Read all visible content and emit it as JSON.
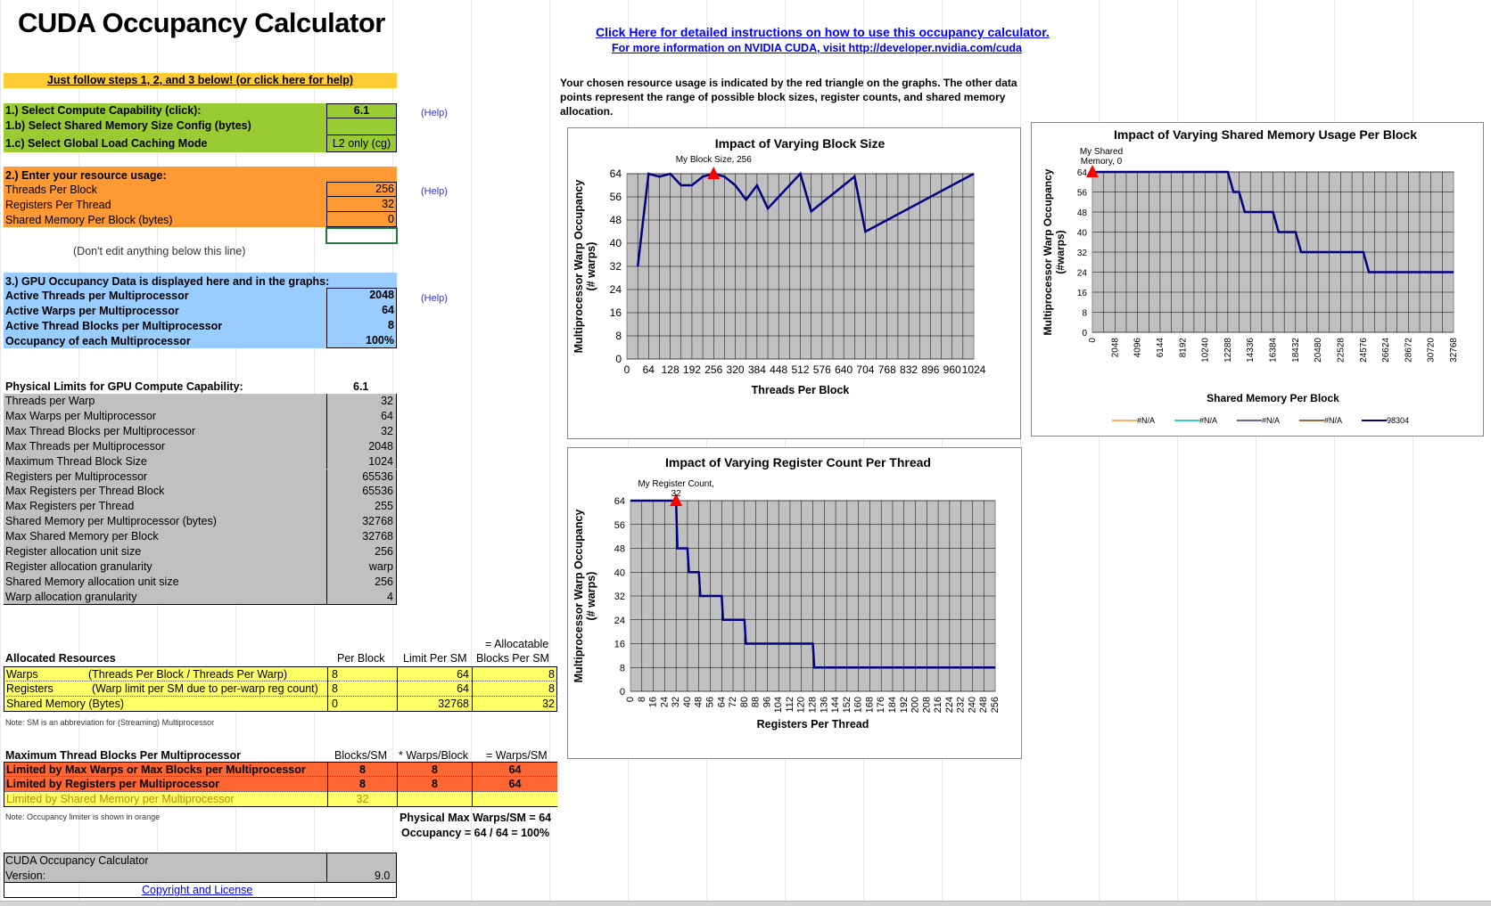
{
  "title": "CUDA Occupancy Calculator",
  "instructions_link": "Click Here for detailed instructions on how to use this occupancy calculator.",
  "more_info_link": "For more information on NVIDIA CUDA, visit http://developer.nvidia.com/cuda",
  "chosen_note": "Your chosen resource usage is indicated by the red triangle on the graphs.  The other data points represent the range of possible block sizes, register counts, and shared memory allocation.",
  "steps_banner": "Just follow steps 1, 2, and 3 below! (or click here for help)",
  "step1": {
    "rows": [
      {
        "label": "1.) Select Compute Capability (click):",
        "value": "6.1"
      },
      {
        "label": "1.b) Select Shared Memory Size Config (bytes)",
        "value": ""
      },
      {
        "label": "1.c) Select Global Load Caching Mode",
        "value": "L2 only (cg)"
      }
    ],
    "help": "(Help)"
  },
  "step2": {
    "heading": "2.) Enter your resource usage:",
    "rows": [
      {
        "label": "Threads Per Block",
        "value": "256"
      },
      {
        "label": "Registers Per Thread",
        "value": "32"
      },
      {
        "label": "Shared Memory Per Block (bytes)",
        "value": "0"
      }
    ],
    "help": "(Help)"
  },
  "dont_edit": "(Don't edit anything below this line)",
  "step3": {
    "heading": "3.) GPU Occupancy Data is displayed here and in the graphs:",
    "rows": [
      {
        "label": "Active Threads per Multiprocessor",
        "value": "2048"
      },
      {
        "label": "Active Warps per Multiprocessor",
        "value": "64"
      },
      {
        "label": "Active Thread Blocks per Multiprocessor",
        "value": "8"
      },
      {
        "label": "Occupancy of each Multiprocessor",
        "value": "100%"
      }
    ],
    "help": "(Help)"
  },
  "limits": {
    "heading": "Physical Limits for GPU Compute Capability:",
    "heading_value": "6.1",
    "rows": [
      {
        "label": "Threads per Warp",
        "value": "32"
      },
      {
        "label": "Max Warps per Multiprocessor",
        "value": "64"
      },
      {
        "label": "Max Thread Blocks per Multiprocessor",
        "value": "32"
      },
      {
        "label": "Max Threads per Multiprocessor",
        "value": "2048"
      },
      {
        "label": "Maximum Thread Block Size",
        "value": "1024"
      },
      {
        "label": "Registers per Multiprocessor",
        "value": "65536"
      },
      {
        "label": "Max Registers per Thread Block",
        "value": "65536"
      },
      {
        "label": "Max Registers per Thread",
        "value": "255"
      },
      {
        "label": "Shared Memory per Multiprocessor (bytes)",
        "value": "32768"
      },
      {
        "label": "Max Shared Memory per Block",
        "value": "32768"
      },
      {
        "label": "Register allocation unit size",
        "value": "256"
      },
      {
        "label": "Register allocation granularity",
        "value": "warp"
      },
      {
        "label": "Shared Memory allocation unit size",
        "value": "256"
      },
      {
        "label": "Warp allocation granularity",
        "value": "4"
      }
    ]
  },
  "allocated": {
    "allocatable_top": "= Allocatable",
    "heading": "Allocated Resources",
    "col_per_block": "Per Block",
    "col_limit": "Limit Per SM",
    "col_blocks": "Blocks Per SM",
    "rows": [
      {
        "label": "Warps",
        "desc": "(Threads Per Block / Threads Per Warp)",
        "per_block": "8",
        "limit": "64",
        "blocks": "8"
      },
      {
        "label": "Registers",
        "desc": "(Warp limit per SM due to per-warp reg count)",
        "per_block": "8",
        "limit": "64",
        "blocks": "8"
      },
      {
        "label": "Shared Memory (Bytes)",
        "desc": "",
        "per_block": "0",
        "limit": "32768",
        "blocks": "32"
      }
    ],
    "note": "Note: SM is an abbreviation for (Streaming) Multiprocessor"
  },
  "maxblocks": {
    "heading": "Maximum Thread Blocks Per Multiprocessor",
    "col_blocks": "Blocks/SM",
    "col_warps": "* Warps/Block",
    "col_total": "= Warps/SM",
    "rows": [
      {
        "label": "Limited by Max Warps or Max Blocks per Multiprocessor",
        "blocks": "8",
        "warps": "8",
        "total": "64",
        "state": "limiter"
      },
      {
        "label": "Limited by Registers per Multiprocessor",
        "blocks": "8",
        "warps": "8",
        "total": "64",
        "state": "limiter"
      },
      {
        "label": "Limited by Shared Memory per Multiprocessor",
        "blocks": "32",
        "warps": "",
        "total": "",
        "state": "normal"
      }
    ],
    "note": "Note: Occupancy limiter is shown in orange",
    "phys_max": "Physical Max Warps/SM = 64",
    "occupancy": "Occupancy = 64 / 64 = 100%"
  },
  "footer": {
    "name": "CUDA Occupancy Calculator",
    "version_label": "Version:",
    "version": "9.0",
    "copyright": "Copyright and License"
  },
  "colors": {
    "banner": "#ffcc33",
    "green": "#99cc33",
    "orange": "#ff9933",
    "blue": "#99ccff",
    "gray": "#c0c0c0",
    "yellow": "#ffff66",
    "limiter": "#ff6633",
    "line": "#000080",
    "marker": "#ff0000"
  },
  "charts": {
    "ylabel_top": "Multiprocessor Warp Occupancy",
    "ylabel_bottom": "(# warps)",
    "ylabel_smem_top": "Multiprocessor Warp Occupancy",
    "ylabel_smem_bottom": "(#warps)"
  },
  "chart_data": [
    {
      "type": "line",
      "title": "Impact of Varying Block Size",
      "xlabel": "Threads Per Block",
      "ylabel": "Multiprocessor Warp Occupancy (# warps)",
      "xlim": [
        0,
        1024
      ],
      "ylim": [
        0,
        64
      ],
      "xticks": [
        0,
        64,
        128,
        192,
        256,
        320,
        384,
        448,
        512,
        576,
        640,
        704,
        768,
        832,
        896,
        960,
        1024
      ],
      "yticks": [
        0,
        8,
        16,
        24,
        32,
        40,
        48,
        56,
        64
      ],
      "x": [
        32,
        64,
        96,
        128,
        160,
        192,
        224,
        256,
        288,
        320,
        352,
        384,
        416,
        448,
        480,
        512,
        544,
        576,
        608,
        640,
        672,
        704,
        736,
        768,
        800,
        832,
        864,
        896,
        928,
        960,
        992,
        1024
      ],
      "y": [
        32,
        64,
        63,
        64,
        60,
        60,
        63,
        64,
        63,
        60,
        55,
        60,
        52,
        56,
        60,
        64,
        51,
        54,
        57,
        60,
        63,
        44,
        46,
        48,
        50,
        52,
        54,
        56,
        58,
        60,
        62,
        64
      ],
      "marker": {
        "x": 256,
        "y": 64,
        "label": "My Block Size, 256"
      },
      "grid": true
    },
    {
      "type": "line",
      "title": "Impact of Varying Shared Memory Usage Per Block",
      "xlabel": "Shared Memory Per Block",
      "ylabel": "Multiprocessor Warp Occupancy (#warps)",
      "xlim": [
        0,
        32768
      ],
      "ylim": [
        0,
        64
      ],
      "xticks": [
        0,
        2048,
        4096,
        6144,
        8192,
        10240,
        12288,
        14336,
        16384,
        18432,
        20480,
        22528,
        24576,
        26624,
        28672,
        30720,
        32768
      ],
      "yticks": [
        0,
        8,
        16,
        24,
        32,
        40,
        48,
        56,
        64
      ],
      "x": [
        0,
        12288,
        12800,
        13312,
        13824,
        14336,
        16384,
        16896,
        18432,
        18944,
        24576,
        25088,
        32768
      ],
      "y": [
        64,
        64,
        56,
        56,
        48,
        48,
        48,
        40,
        40,
        32,
        32,
        24,
        24
      ],
      "marker": {
        "x": 0,
        "y": 64,
        "label_line1": "My Shared",
        "label_line2": "Memory, 0"
      },
      "legend": [
        "#N/A",
        "#N/A",
        "#N/A",
        "#N/A",
        "98304"
      ],
      "legend_colors": [
        "#ffb366",
        "#33cccc",
        "#666699",
        "#996633",
        "#000080"
      ],
      "grid": true
    },
    {
      "type": "line",
      "title": "Impact of Varying Register Count Per Thread",
      "xlabel": "Registers Per Thread",
      "ylabel": "Multiprocessor Warp Occupancy (# warps)",
      "xlim": [
        0,
        256
      ],
      "ylim": [
        0,
        64
      ],
      "xticks": [
        0,
        8,
        16,
        24,
        32,
        40,
        48,
        56,
        64,
        72,
        80,
        88,
        96,
        104,
        112,
        120,
        128,
        136,
        144,
        152,
        160,
        168,
        176,
        184,
        192,
        200,
        208,
        216,
        224,
        232,
        240,
        248,
        256
      ],
      "yticks": [
        0,
        8,
        16,
        24,
        32,
        40,
        48,
        56,
        64
      ],
      "x": [
        0,
        32,
        33,
        40,
        41,
        48,
        49,
        64,
        65,
        80,
        81,
        128,
        129,
        256
      ],
      "y": [
        64,
        64,
        48,
        48,
        40,
        40,
        32,
        32,
        24,
        24,
        16,
        16,
        8,
        8
      ],
      "marker": {
        "x": 32,
        "y": 64,
        "label_line1": "My Register Count,",
        "label_line2": "32"
      },
      "grid": true
    }
  ]
}
